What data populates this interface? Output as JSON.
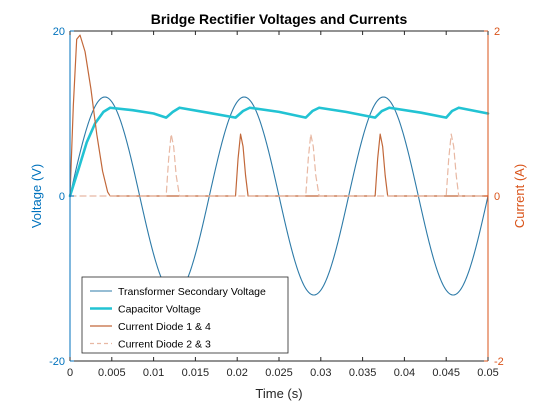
{
  "chart_data": {
    "type": "line",
    "title": "Bridge Rectifier Voltages and Currents",
    "xlabel": "Time (s)",
    "ylabel_left": "Voltage (V)",
    "ylabel_right": "Current (A)",
    "xlim": [
      0,
      0.05
    ],
    "ylim_left": [
      -20,
      20
    ],
    "ylim_right": [
      -2,
      2
    ],
    "x_ticks": [
      "0",
      "0.005",
      "0.01",
      "0.015",
      "0.02",
      "0.025",
      "0.03",
      "0.035",
      "0.04",
      "0.045",
      "0.05"
    ],
    "y_left_ticks": [
      "20",
      "0",
      "-20"
    ],
    "y_right_ticks": [
      "2",
      "0",
      "-2"
    ],
    "grid": false,
    "legend_position": "bottom-left",
    "colors": {
      "left_axis": "#0072BD",
      "right_axis": "#D95319",
      "transformer": "#2E7BA8",
      "capacitor": "#22C3D3",
      "diode14": "#C2683A",
      "diode23": "#E8B8A3"
    },
    "series": [
      {
        "name": "Transformer Secondary Voltage",
        "axis": "left",
        "style": "solid",
        "description": "12 V amplitude sine at 60 Hz",
        "x": [
          0,
          0.002,
          0.004167,
          0.006,
          0.008333,
          0.01,
          0.0125,
          0.015,
          0.016667,
          0.019,
          0.020833,
          0.023,
          0.025,
          0.027,
          0.029167,
          0.031,
          0.033333,
          0.035,
          0.0375,
          0.04,
          0.041667,
          0.044,
          0.045833,
          0.048,
          0.05
        ],
        "y": [
          0,
          8.8,
          12,
          8.3,
          0,
          -7.1,
          -12,
          -7.1,
          0,
          9.6,
          12,
          6.9,
          0,
          -9.0,
          -12,
          -8.3,
          0,
          7.1,
          12,
          7.1,
          0,
          -9.6,
          -12,
          -6.9,
          0
        ]
      },
      {
        "name": "Capacitor Voltage",
        "axis": "left",
        "style": "solid-thick",
        "x": [
          0,
          0.001,
          0.002,
          0.003,
          0.004,
          0.0048,
          0.0075,
          0.01,
          0.0115,
          0.0123,
          0.0131,
          0.0165,
          0.0198,
          0.0207,
          0.0215,
          0.025,
          0.0282,
          0.029,
          0.0298,
          0.033,
          0.0365,
          0.0373,
          0.0382,
          0.042,
          0.045,
          0.0457,
          0.0465,
          0.05
        ],
        "y": [
          0,
          3.2,
          6.5,
          8.8,
          10.2,
          10.7,
          10.4,
          10.0,
          9.5,
          10.2,
          10.7,
          10.1,
          9.5,
          10.3,
          10.7,
          10.2,
          9.5,
          10.3,
          10.7,
          10.2,
          9.5,
          10.3,
          10.7,
          10.1,
          9.5,
          10.3,
          10.7,
          10.0
        ]
      },
      {
        "name": "Current Diode 1 & 4",
        "axis": "right",
        "style": "solid",
        "x": [
          0,
          0.0004,
          0.0008,
          0.0012,
          0.0018,
          0.0025,
          0.0032,
          0.0039,
          0.0045,
          0.0048,
          0.0198,
          0.0201,
          0.0204,
          0.0207,
          0.021,
          0.0213,
          0.0365,
          0.0368,
          0.0371,
          0.0374,
          0.0377,
          0.038,
          0.05
        ],
        "y": [
          0,
          1.1,
          1.9,
          1.95,
          1.75,
          1.3,
          0.75,
          0.3,
          0.05,
          0,
          0,
          0.45,
          0.75,
          0.6,
          0.25,
          0,
          0,
          0.45,
          0.75,
          0.6,
          0.25,
          0,
          0
        ]
      },
      {
        "name": "Current Diode 2 & 3",
        "axis": "right",
        "style": "dashed",
        "x": [
          0,
          0.0115,
          0.0118,
          0.0121,
          0.0124,
          0.0127,
          0.0131,
          0.0282,
          0.0285,
          0.0288,
          0.0291,
          0.0294,
          0.0298,
          0.045,
          0.0453,
          0.0456,
          0.0459,
          0.0462,
          0.0465,
          0.05
        ],
        "y": [
          0,
          0,
          0.45,
          0.75,
          0.6,
          0.25,
          0,
          0,
          0.45,
          0.75,
          0.6,
          0.25,
          0,
          0,
          0.45,
          0.75,
          0.6,
          0.25,
          0,
          0
        ]
      }
    ]
  }
}
